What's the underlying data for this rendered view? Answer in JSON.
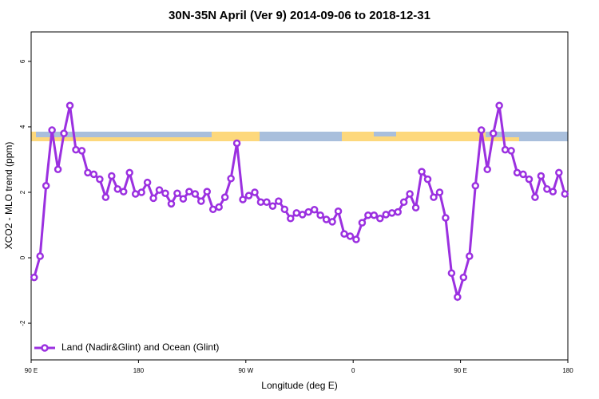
{
  "chart_data": {
    "type": "line",
    "title": "30N-35N April (Ver 9)   2014-09-06 to 2018-12-31",
    "x_label": "Longitude (deg E)",
    "y_label": "XCO2 - MLO trend (ppm)",
    "x": [
      92.5,
      97.5,
      102.5,
      107.5,
      112.5,
      117.5,
      122.5,
      127.5,
      132.5,
      137.5,
      142.5,
      147.5,
      152.5,
      157.5,
      162.5,
      167.5,
      172.5,
      177.5,
      182.5,
      187.5,
      192.5,
      197.5,
      202.5,
      207.5,
      212.5,
      217.5,
      222.5,
      227.5,
      232.5,
      237.5,
      242.5,
      247.5,
      252.5,
      257.5,
      262.5,
      267.5,
      272.5,
      277.5,
      282.5,
      287.5,
      292.5,
      297.5,
      302.5,
      307.5,
      312.5,
      317.5,
      322.5,
      327.5,
      332.5,
      337.5,
      342.5,
      347.5,
      352.5,
      357.5,
      362.5,
      367.5,
      372.5,
      377.5,
      382.5,
      387.5,
      392.5,
      397.5,
      402.5,
      407.5,
      412.5,
      417.5,
      422.5,
      427.5,
      432.5,
      437.5,
      442.5,
      447.5,
      452.5,
      457.5,
      462.5,
      467.5,
      472.5,
      477.5,
      482.5,
      487.5,
      492.5,
      497.5,
      502.5,
      507.5,
      512.5,
      517.5,
      522.5,
      527.5,
      532.5,
      537.5
    ],
    "series": [
      {
        "name": "Land (Nadir&Glint) and Ocean (Glint)",
        "color": "#9b30e0",
        "values": [
          -0.6,
          0.05,
          2.2,
          3.9,
          2.7,
          3.8,
          4.65,
          3.3,
          3.27,
          2.6,
          2.55,
          2.4,
          1.85,
          2.5,
          2.1,
          2.02,
          2.6,
          1.95,
          2.0,
          2.3,
          1.82,
          2.07,
          1.97,
          1.65,
          1.97,
          1.8,
          2.02,
          1.95,
          1.73,
          2.02,
          1.48,
          1.55,
          1.85,
          2.42,
          3.5,
          1.78,
          1.9,
          2.0,
          1.7,
          1.7,
          1.58,
          1.73,
          1.48,
          1.2,
          1.37,
          1.32,
          1.4,
          1.47,
          1.3,
          1.17,
          1.1,
          1.42,
          0.73,
          0.66,
          0.56,
          1.07,
          1.3,
          1.3,
          1.2,
          1.32,
          1.37,
          1.4,
          1.7,
          1.95,
          1.53,
          2.63,
          2.4,
          1.85,
          2.0,
          1.22,
          -0.47,
          -1.2,
          -0.6,
          0.05,
          2.2,
          3.9,
          2.7,
          3.8,
          4.65,
          3.3,
          3.27,
          2.6,
          2.55,
          2.4,
          1.85,
          2.5,
          2.1,
          2.02,
          2.6,
          1.95
        ]
      }
    ],
    "xlim": [
      90,
      540
    ],
    "xticks": [
      {
        "value": 90,
        "label": "90 E"
      },
      180,
      {
        "value": 270,
        "label": "90 W"
      },
      {
        "value": 360,
        "label": "0"
      },
      {
        "value": 450,
        "label": "90 E"
      },
      {
        "value": 540,
        "label": "180"
      }
    ],
    "ylim": [
      -3.12,
      6.9
    ],
    "yticks": [
      -2,
      0,
      2,
      4,
      6
    ],
    "legend": "bottom-left"
  }
}
